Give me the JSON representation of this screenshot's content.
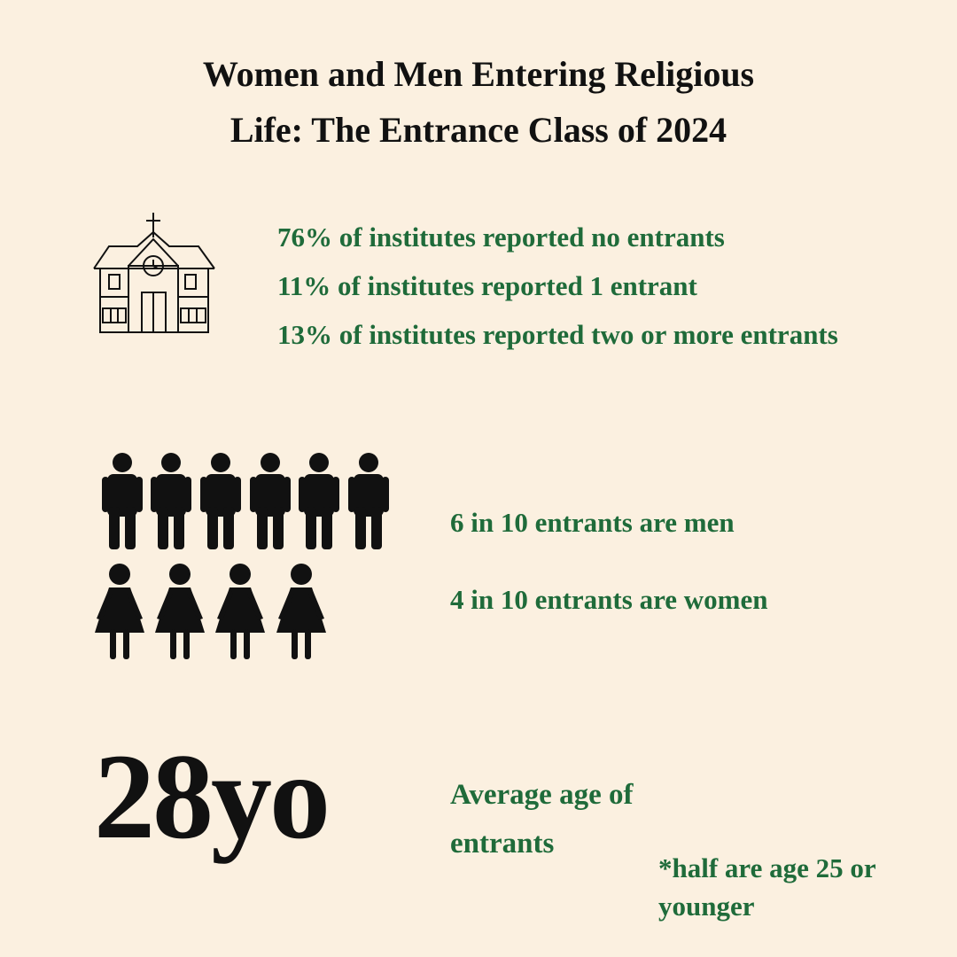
{
  "title": "Women and Men Entering Religious Life: The Entrance Class of 2024",
  "institutes": {
    "lines": [
      "76% of institutes reported no entrants",
      "11% of institutes reported 1 entrant",
      "13% of institutes reported two or more entrants"
    ]
  },
  "gender": {
    "men": "6 in 10 entrants are men",
    "women": "4 in 10 entrants are women"
  },
  "age": {
    "value": "28yo",
    "label": "Average age of entrants",
    "note": "*half are age 25 or younger"
  }
}
